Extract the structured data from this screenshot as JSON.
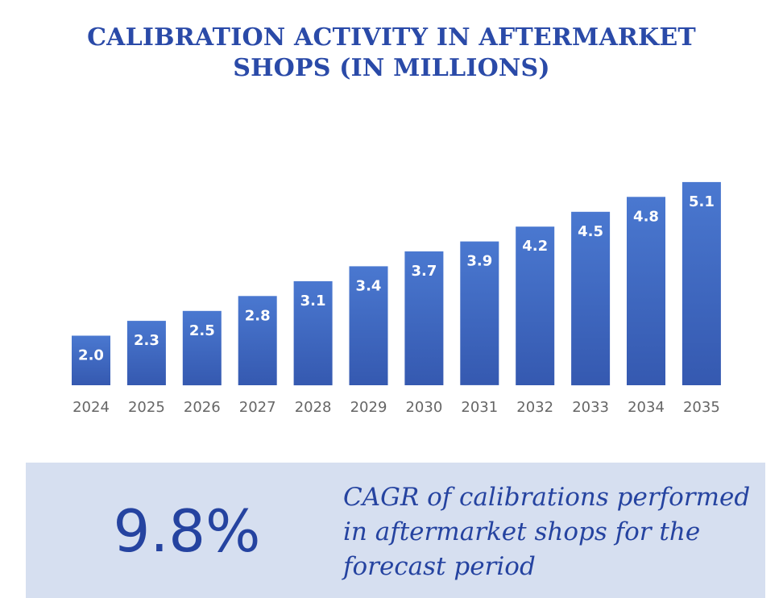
{
  "title": {
    "line1": "CALIBRATION ACTIVITY IN AFTERMARKET",
    "line2": "SHOPS (IN MILLIONS)"
  },
  "chart_data": {
    "type": "bar",
    "title": "CALIBRATION ACTIVITY IN AFTERMARKET SHOPS (IN MILLIONS)",
    "categories": [
      "2024",
      "2025",
      "2026",
      "2027",
      "2028",
      "2029",
      "2030",
      "2031",
      "2032",
      "2033",
      "2034",
      "2035"
    ],
    "values": [
      2.0,
      2.3,
      2.5,
      2.8,
      3.1,
      3.4,
      3.7,
      3.9,
      4.2,
      4.5,
      4.8,
      5.1
    ],
    "value_labels": [
      "2.0",
      "2.3",
      "2.5",
      "2.8",
      "3.1",
      "3.4",
      "3.7",
      "3.9",
      "4.2",
      "4.5",
      "4.8",
      "5.1"
    ],
    "xlabel": "",
    "ylabel": "",
    "grid": false,
    "legend": "none",
    "bar_color": "#3f6cc4"
  },
  "stat": {
    "value": "9.8%",
    "description": "CAGR of calibrations performed in aftermarket shops for the forecast period"
  },
  "colors": {
    "title": "#2a4aa8",
    "accent": "#2543a0",
    "panel_bg": "#d6dff0",
    "bar": "#3f6cc4"
  }
}
